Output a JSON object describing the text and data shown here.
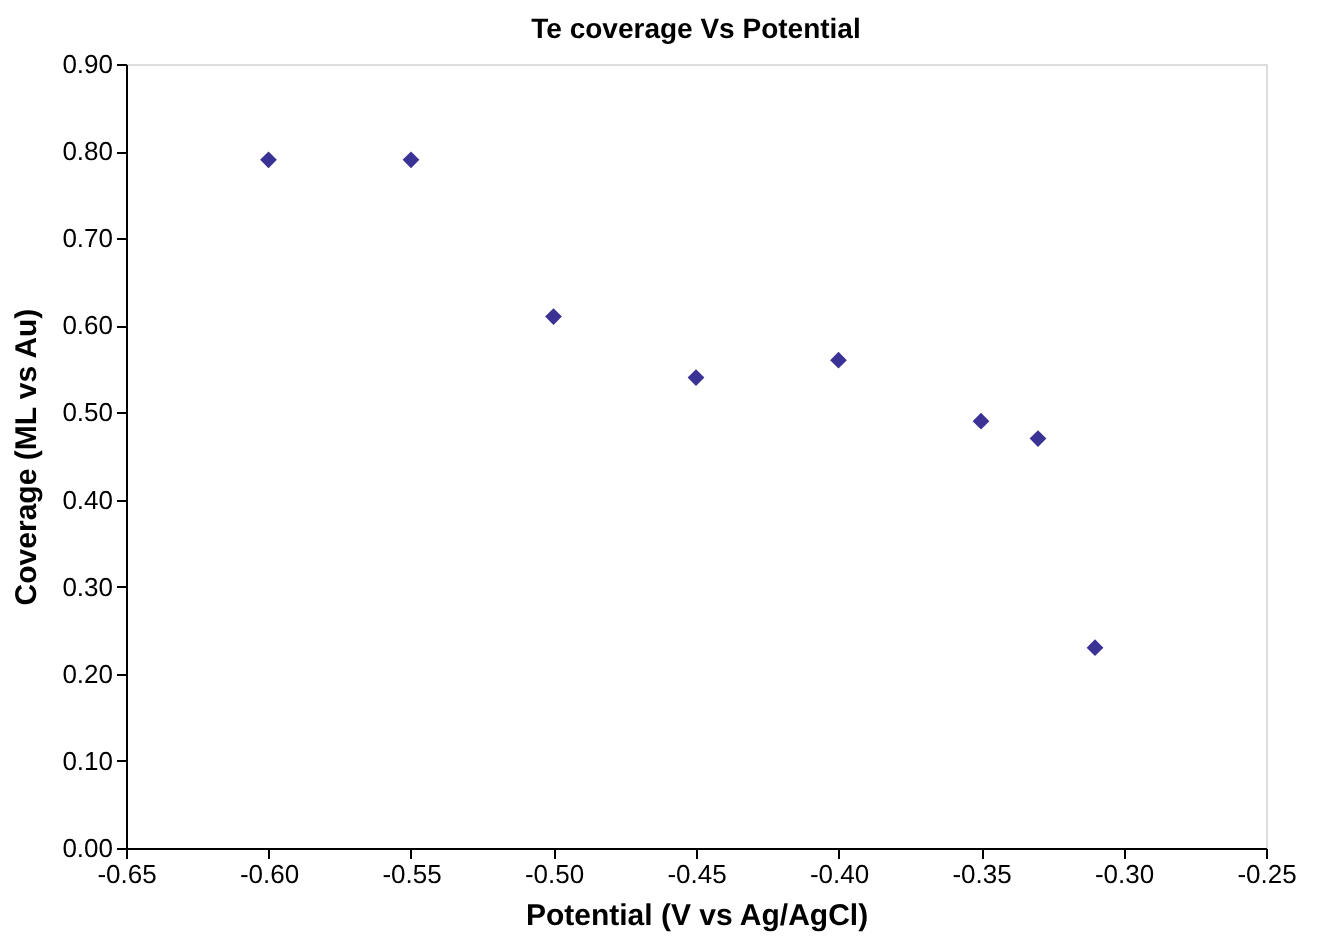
{
  "chart_data": {
    "type": "scatter",
    "title": "Te coverage Vs Potential",
    "xlabel": "Potential (V vs Ag/AgCl)",
    "ylabel": "Coverage (ML vs Au)",
    "x": [
      -0.6,
      -0.55,
      -0.5,
      -0.45,
      -0.4,
      -0.35,
      -0.33,
      -0.31
    ],
    "series": [
      {
        "color": "#3b3296",
        "values": [
          0.79,
          0.79,
          0.61,
          0.54,
          0.56,
          0.49,
          0.47,
          0.23
        ]
      }
    ],
    "xlim": [
      -0.65,
      -0.25
    ],
    "ylim": [
      0,
      0.9
    ],
    "xticks": [
      {
        "value": -0.65,
        "label": "-0.65"
      },
      {
        "value": -0.6,
        "label": "-0.60"
      },
      {
        "value": -0.55,
        "label": "-0.55"
      },
      {
        "value": -0.5,
        "label": "-0.50"
      },
      {
        "value": -0.45,
        "label": "-0.45"
      },
      {
        "value": -0.4,
        "label": "-0.40"
      },
      {
        "value": -0.35,
        "label": "-0.35"
      },
      {
        "value": -0.3,
        "label": "-0.30"
      },
      {
        "value": -0.25,
        "label": "-0.25"
      }
    ],
    "yticks": [
      {
        "value": 0,
        "label": "0.00"
      },
      {
        "value": 0.1,
        "label": "0.10"
      },
      {
        "value": 0.2,
        "label": "0.20"
      },
      {
        "value": 0.3,
        "label": "0.30"
      },
      {
        "value": 0.4,
        "label": "0.40"
      },
      {
        "value": 0.5,
        "label": "0.50"
      },
      {
        "value": 0.6,
        "label": "0.60"
      },
      {
        "value": 0.7,
        "label": "0.70"
      },
      {
        "value": 0.8,
        "label": "0.80"
      },
      {
        "value": 0.9,
        "label": "0.90"
      }
    ],
    "grid": false,
    "legend": false,
    "marker": "diamond"
  }
}
